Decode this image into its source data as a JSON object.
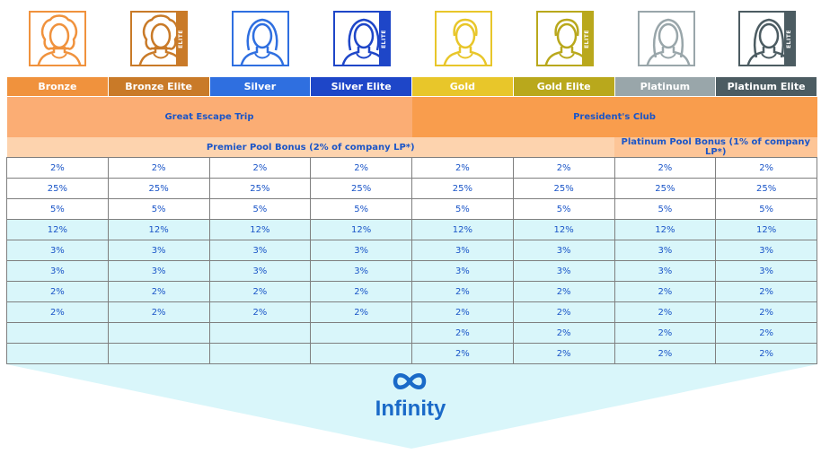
{
  "levels": [
    {
      "name": "Bronze",
      "color": "#f0923d",
      "elite": false,
      "gender": "female-curly"
    },
    {
      "name": "Bronze Elite",
      "color": "#c97a28",
      "elite": true,
      "gender": "female-curly"
    },
    {
      "name": "Silver",
      "color": "#2f6fe0",
      "elite": false,
      "gender": "female"
    },
    {
      "name": "Silver Elite",
      "color": "#1e46c8",
      "elite": true,
      "gender": "female"
    },
    {
      "name": "Gold",
      "color": "#e8c62a",
      "elite": false,
      "gender": "male"
    },
    {
      "name": "Gold Elite",
      "color": "#b9a81c",
      "elite": true,
      "gender": "male"
    },
    {
      "name": "Platinum",
      "color": "#99a6aa",
      "elite": false,
      "gender": "female-long"
    },
    {
      "name": "Platinum Elite",
      "color": "#4c5c62",
      "elite": true,
      "gender": "female-long"
    }
  ],
  "elite_tag": "ELITE",
  "programs": {
    "great_escape": "Great Escape Trip",
    "presidents_club": "President's Club",
    "premier_pool": "Premier Pool Bonus (2% of company LP*)",
    "platinum_pool": "Platinum Pool Bonus (1% of company LP*)"
  },
  "rows": [
    [
      "2%",
      "2%",
      "2%",
      "2%",
      "2%",
      "2%",
      "2%",
      "2%"
    ],
    [
      "25%",
      "25%",
      "25%",
      "25%",
      "25%",
      "25%",
      "25%",
      "25%"
    ],
    [
      "5%",
      "5%",
      "5%",
      "5%",
      "5%",
      "5%",
      "5%",
      "5%"
    ],
    [
      "12%",
      "12%",
      "12%",
      "12%",
      "12%",
      "12%",
      "12%",
      "12%"
    ],
    [
      "3%",
      "3%",
      "3%",
      "3%",
      "3%",
      "3%",
      "3%",
      "3%"
    ],
    [
      "3%",
      "3%",
      "3%",
      "3%",
      "3%",
      "3%",
      "3%",
      "3%"
    ],
    [
      "2%",
      "2%",
      "2%",
      "2%",
      "2%",
      "2%",
      "2%",
      "2%"
    ],
    [
      "2%",
      "2%",
      "2%",
      "2%",
      "2%",
      "2%",
      "2%",
      "2%"
    ],
    [
      "",
      "",
      "",
      "",
      "2%",
      "2%",
      "2%",
      "2%"
    ],
    [
      "",
      "",
      "",
      "",
      "2%",
      "2%",
      "2%",
      "2%"
    ]
  ],
  "infinity": {
    "label": "Infinity",
    "icon": "infinity-icon"
  },
  "colors": {
    "great_escape_bg": "#fbad74",
    "presidents_bg": "#f99d4d",
    "premier_pool_bg": "#fdd3ae",
    "platinum_pool_bg": "#fdc597",
    "cyan_row": "#d9f6fa",
    "infinity_bg": "#d9f6fa",
    "text_blue": "#1a55c8"
  }
}
